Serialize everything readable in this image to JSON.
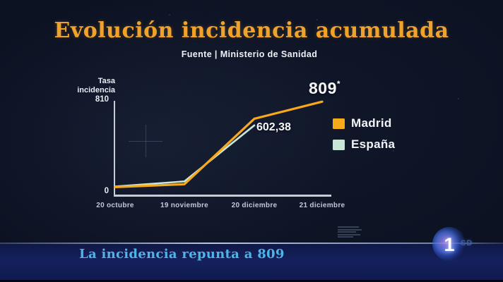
{
  "header": {
    "title": "Evolución incidencia acumulada",
    "source": "Fuente | Ministerio de Sanidad"
  },
  "chart_data": {
    "type": "line",
    "title": "Evolución incidencia acumulada",
    "source": "Fuente | Ministerio de Sanidad",
    "ylabel": "Tasa\nincidencia",
    "y_axis": {
      "min": 0,
      "max": 810,
      "min_label": "0",
      "max_label": "810"
    },
    "categories": [
      "20 octubre",
      "19 noviembre",
      "20 diciembre",
      "21 diciembre"
    ],
    "series": [
      {
        "name": "Madrid",
        "color": "#F7A81B",
        "width": 3.2,
        "values": [
          65,
          90,
          660,
          809
        ]
      },
      {
        "name": "España",
        "color": "#C7E6D9",
        "width": 2.6,
        "values": [
          70,
          115,
          602.38,
          null
        ]
      }
    ],
    "annotations": [
      {
        "text": "809",
        "suffix": "*",
        "series": "Madrid",
        "x": "21 diciembre",
        "value": 809
      },
      {
        "text": "602,38",
        "series": "España",
        "x": "20 diciembre",
        "value": 602.38
      }
    ],
    "legend_position": "right",
    "grid": false
  },
  "banner": {
    "headline": "La incidencia repunta a 809",
    "channel_logo": "1",
    "badge": "SD"
  }
}
